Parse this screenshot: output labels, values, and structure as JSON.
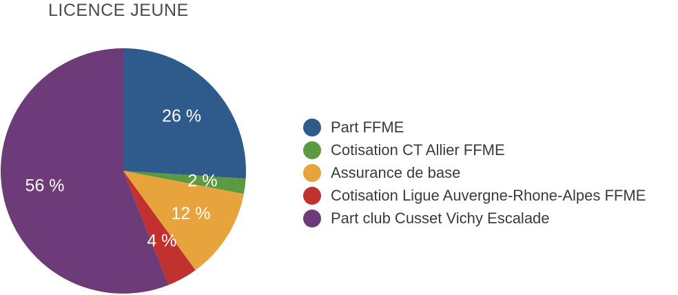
{
  "chart_data": {
    "type": "pie",
    "title": "LICENCE JEUNE",
    "slices": [
      {
        "label": "Part FFME",
        "value": 26,
        "value_label": "26 %",
        "color": "#2e5a8c"
      },
      {
        "label": "Cotisation CT Allier FFME",
        "value": 2,
        "value_label": "2 %",
        "color": "#5c9a42"
      },
      {
        "label": "Assurance de base",
        "value": 12,
        "value_label": "12 %",
        "color": "#e8a43c"
      },
      {
        "label": "Cotisation Ligue Auvergne-Rhone-Alpes FFME",
        "value": 4,
        "value_label": "4 %",
        "color": "#c0312f"
      },
      {
        "label": "Part club Cusset Vichy Escalade",
        "value": 56,
        "value_label": "56 %",
        "color": "#6c3b78"
      }
    ],
    "legend_position": "right"
  }
}
